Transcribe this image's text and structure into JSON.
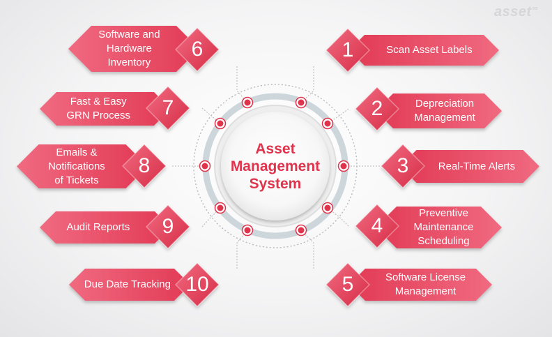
{
  "logo": {
    "text": "asset",
    "mark": "∞"
  },
  "hub": {
    "title": "Asset\nManagement\nSystem"
  },
  "colors": {
    "accent": "#e0344d",
    "accent_light": "#f07a8a",
    "ring": "#c7d3d8",
    "connector": "#b8b8bb"
  },
  "items": [
    {
      "number": "1",
      "label": "Scan Asset Labels"
    },
    {
      "number": "2",
      "label": "Depreciation\nManagement"
    },
    {
      "number": "3",
      "label": "Real-Time Alerts"
    },
    {
      "number": "4",
      "label": "Preventive\nMaintenance\nScheduling"
    },
    {
      "number": "5",
      "label": "Software License\nManagement"
    },
    {
      "number": "6",
      "label": "Software and\nHardware\nInventory"
    },
    {
      "number": "7",
      "label": "Fast & Easy\nGRN Process"
    },
    {
      "number": "8",
      "label": "Emails &\nNotifications\nof Tickets"
    },
    {
      "number": "9",
      "label": "Audit Reports"
    },
    {
      "number": "10",
      "label": "Due Date Tracking"
    }
  ]
}
